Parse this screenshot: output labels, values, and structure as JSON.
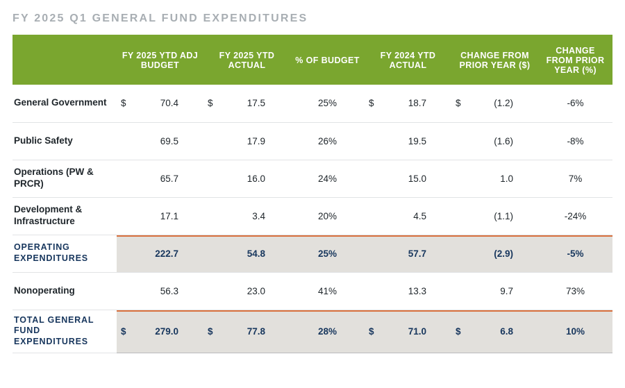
{
  "title": "FY 2025 Q1 GENERAL FUND EXPENDITURES",
  "colors": {
    "header_bg": "#7aa62f",
    "header_text": "#ffffff",
    "title_text": "#a8aeb3",
    "body_text": "#20272c",
    "emph_text": "#17365d",
    "subtotal_bg": "#e2e0dc",
    "accent_rule": "#d9703d",
    "row_divider": "#e1e3e5"
  },
  "columns": [
    "",
    "FY 2025 YTD ADJ BUDGET",
    "FY 2025 YTD ACTUAL",
    "% OF BUDGET",
    "FY 2024 YTD ACTUAL",
    "CHANGE FROM PRIOR YEAR ($)",
    "CHANGE FROM PRIOR YEAR (%)"
  ],
  "currency_symbol": "$",
  "rows": [
    {
      "label": "General Government",
      "show_currency": true,
      "adj_budget": "70.4",
      "actual_2025": "17.5",
      "pct_budget": "25%",
      "actual_2024": "18.7",
      "chg_dollar": "(1.2)",
      "chg_pct": "-6%",
      "type": "data"
    },
    {
      "label": "Public Safety",
      "show_currency": false,
      "adj_budget": "69.5",
      "actual_2025": "17.9",
      "pct_budget": "26%",
      "actual_2024": "19.5",
      "chg_dollar": "(1.6)",
      "chg_pct": "-8%",
      "type": "data"
    },
    {
      "label": "Operations (PW & PRCR)",
      "show_currency": false,
      "adj_budget": "65.7",
      "actual_2025": "16.0",
      "pct_budget": "24%",
      "actual_2024": "15.0",
      "chg_dollar": "1.0",
      "chg_pct": "7%",
      "type": "data"
    },
    {
      "label": "Development & Infrastructure",
      "show_currency": false,
      "adj_budget": "17.1",
      "actual_2025": "3.4",
      "pct_budget": "20%",
      "actual_2024": "4.5",
      "chg_dollar": "(1.1)",
      "chg_pct": "-24%",
      "type": "data"
    },
    {
      "label": "OPERATING EXPENDITURES",
      "show_currency": false,
      "adj_budget": "222.7",
      "actual_2025": "54.8",
      "pct_budget": "25%",
      "actual_2024": "57.7",
      "chg_dollar": "(2.9)",
      "chg_pct": "-5%",
      "type": "subtotal"
    },
    {
      "label": "Nonoperating",
      "show_currency": false,
      "adj_budget": "56.3",
      "actual_2025": "23.0",
      "pct_budget": "41%",
      "actual_2024": "13.3",
      "chg_dollar": "9.7",
      "chg_pct": "73%",
      "type": "data"
    },
    {
      "label": "TOTAL GENERAL FUND EXPENDITURES",
      "show_currency": true,
      "adj_budget": "279.0",
      "actual_2025": "77.8",
      "pct_budget": "28%",
      "actual_2024": "71.0",
      "chg_dollar": "6.8",
      "chg_pct": "10%",
      "type": "total"
    }
  ]
}
